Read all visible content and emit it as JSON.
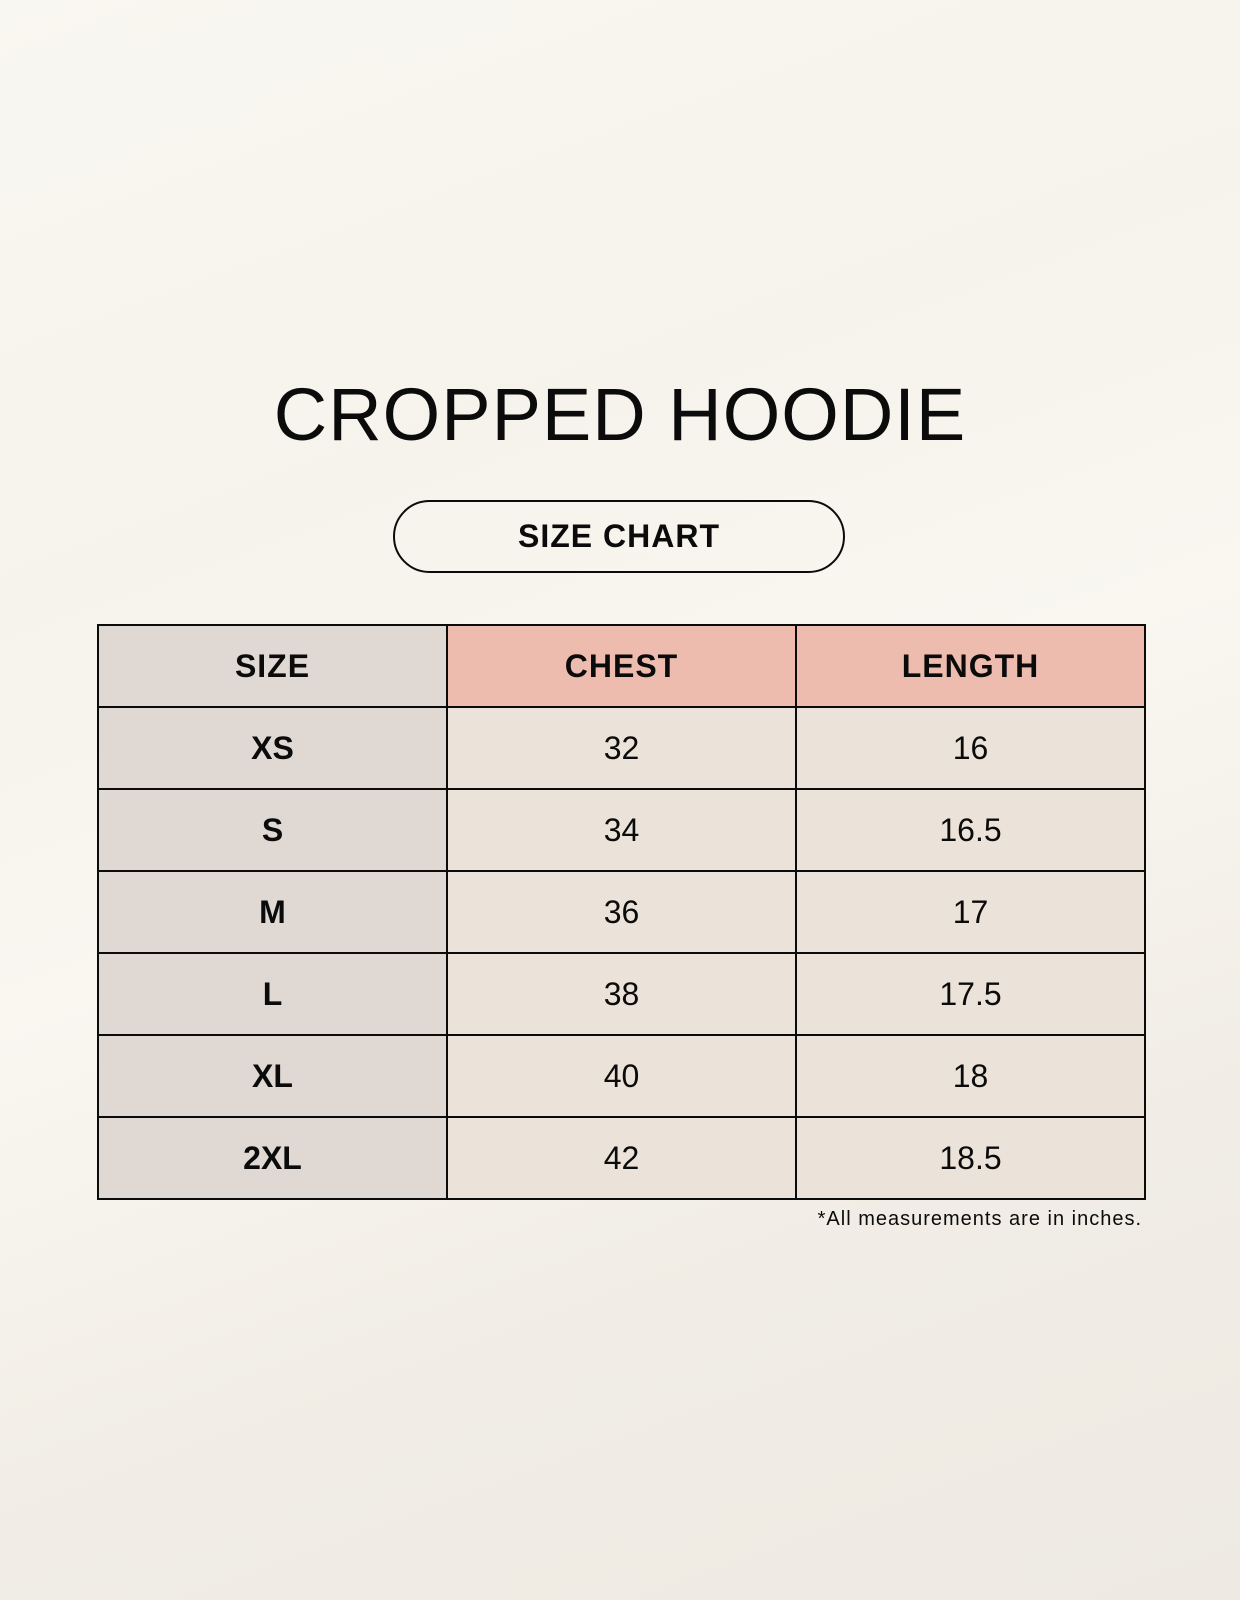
{
  "title": "CROPPED HOODIE",
  "subtitle": "SIZE CHART",
  "table": {
    "headers": [
      "SIZE",
      "CHEST",
      "LENGTH"
    ],
    "rows": [
      [
        "XS",
        "32",
        "16"
      ],
      [
        "S",
        "34",
        "16.5"
      ],
      [
        "M",
        "36",
        "17"
      ],
      [
        "L",
        "38",
        "17.5"
      ],
      [
        "XL",
        "40",
        "18"
      ],
      [
        "2XL",
        "42",
        "18.5"
      ]
    ]
  },
  "footnote": "*All measurements are in inches.",
  "colors": {
    "size_column": "#e0d8d3",
    "header_accent": "#edbcaf",
    "value_cells": "#ebe3d9",
    "background": "#f8f5ee"
  }
}
